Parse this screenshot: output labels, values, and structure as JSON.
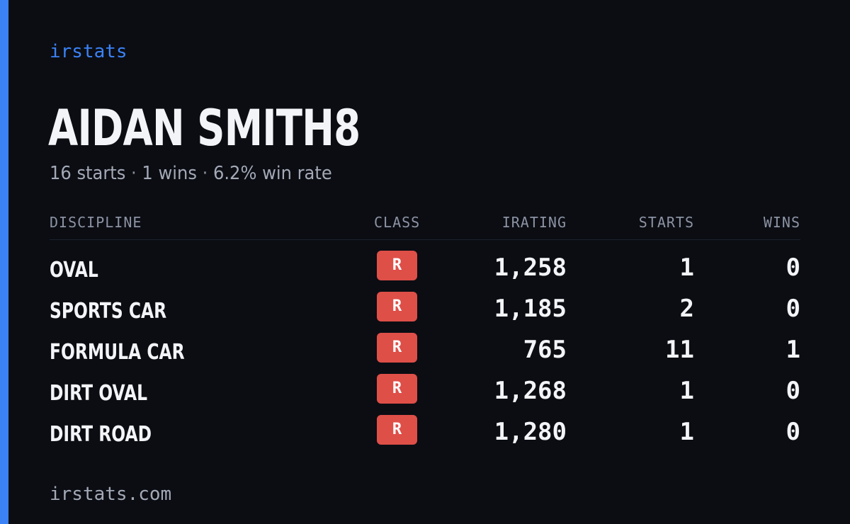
{
  "brand": "irstats",
  "colors": {
    "accent": "#3b82f6",
    "background": "#0b0d13",
    "class_badge": "#de4f48"
  },
  "driver": {
    "name": "AIDAN SMITH8"
  },
  "summary": {
    "starts": "16 starts",
    "wins": "1 wins",
    "win_rate": "6.2% win rate",
    "separator": "·"
  },
  "table": {
    "headers": {
      "discipline": "DISCIPLINE",
      "class": "CLASS",
      "irating": "IRATING",
      "starts": "STARTS",
      "wins": "WINS"
    },
    "rows": [
      {
        "discipline": "OVAL",
        "class": "R",
        "irating": "1,258",
        "starts": "1",
        "wins": "0"
      },
      {
        "discipline": "SPORTS CAR",
        "class": "R",
        "irating": "1,185",
        "starts": "2",
        "wins": "0"
      },
      {
        "discipline": "FORMULA CAR",
        "class": "R",
        "irating": "765",
        "starts": "11",
        "wins": "1"
      },
      {
        "discipline": "DIRT OVAL",
        "class": "R",
        "irating": "1,268",
        "starts": "1",
        "wins": "0"
      },
      {
        "discipline": "DIRT ROAD",
        "class": "R",
        "irating": "1,280",
        "starts": "1",
        "wins": "0"
      }
    ]
  },
  "footer": {
    "url": "irstats.com"
  }
}
